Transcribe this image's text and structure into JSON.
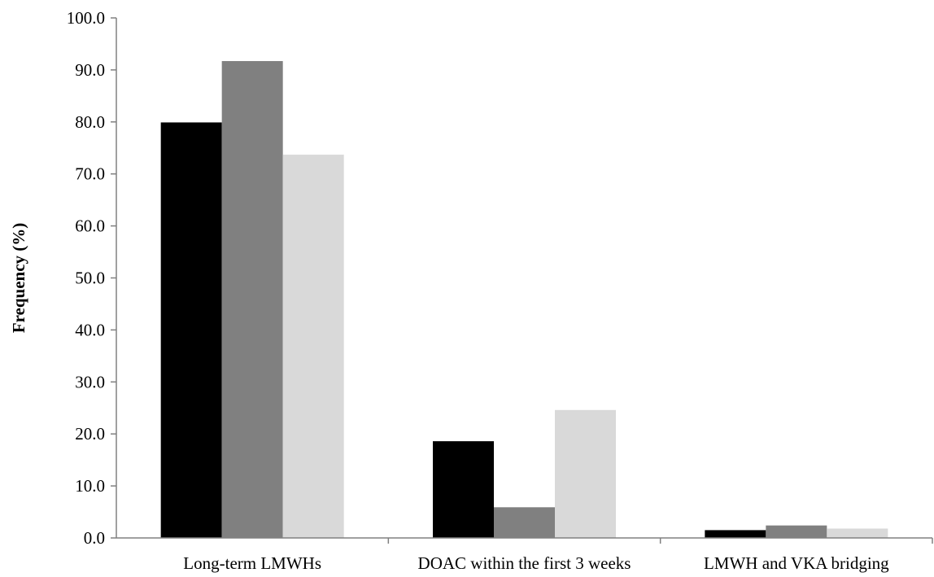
{
  "chart_data": {
    "type": "bar",
    "title": "",
    "xlabel": "",
    "ylabel": "Frequency (%)",
    "ylim": [
      0,
      100
    ],
    "ytick_step": 10,
    "ytick_decimals": 1,
    "grid": false,
    "legend": "none",
    "categories": [
      "Long-term LMWHs",
      "DOAC within the first 3 weeks",
      "LMWH and VKA bridging"
    ],
    "series": [
      {
        "values": [
          79.9,
          18.6,
          1.5
        ],
        "color": "#000000"
      },
      {
        "values": [
          91.7,
          5.9,
          2.4
        ],
        "color": "#808080"
      },
      {
        "values": [
          73.7,
          24.6,
          1.8
        ],
        "color": "#d9d9d9"
      }
    ]
  }
}
